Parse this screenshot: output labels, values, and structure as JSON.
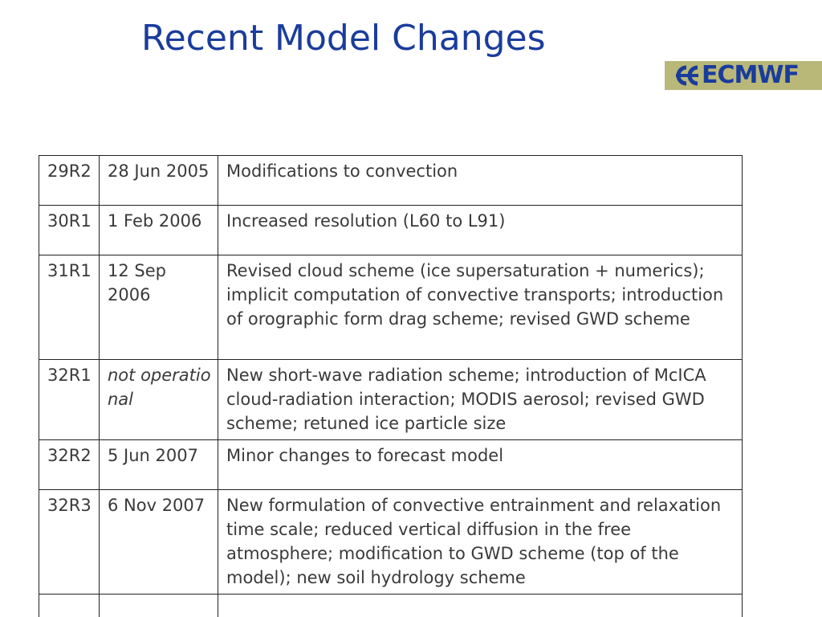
{
  "slide": {
    "title": "Recent Model Changes",
    "logo": {
      "text": "ECMWF",
      "icon": "ecmwf-logo-icon",
      "background": "#b9b878",
      "color": "#1a3c9c"
    },
    "title_color": "#1a3c9c"
  },
  "table": {
    "rows": [
      {
        "cycle": "29R2",
        "date": "28 Jun 2005",
        "description": "Modifications to convection",
        "date_italic": false
      },
      {
        "cycle": "30R1",
        "date": "1 Feb 2006",
        "description": "Increased resolution (L60 to L91)",
        "date_italic": false
      },
      {
        "cycle": "31R1",
        "date": "12 Sep 2006",
        "description": "Revised cloud scheme (ice supersaturation + numerics); implicit computation of convective transports; introduction of orographic form drag scheme; revised GWD scheme",
        "date_italic": false
      },
      {
        "cycle": "32R1",
        "date": "not operational",
        "description": "New short-wave radiation scheme; introduction of McICA cloud-radiation interaction; MODIS aerosol; revised GWD scheme; retuned ice particle size",
        "date_italic": true
      },
      {
        "cycle": "32R2",
        "date": "5 Jun 2007",
        "description": "Minor changes to forecast model",
        "date_italic": false
      },
      {
        "cycle": "32R3",
        "date": "6 Nov 2007",
        "description": "New formulation of convective entrainment and relaxation time scale; reduced vertical diffusion in the free atmosphere; modification to GWD scheme (top of the model); new soil hydrology scheme",
        "date_italic": false
      }
    ]
  }
}
